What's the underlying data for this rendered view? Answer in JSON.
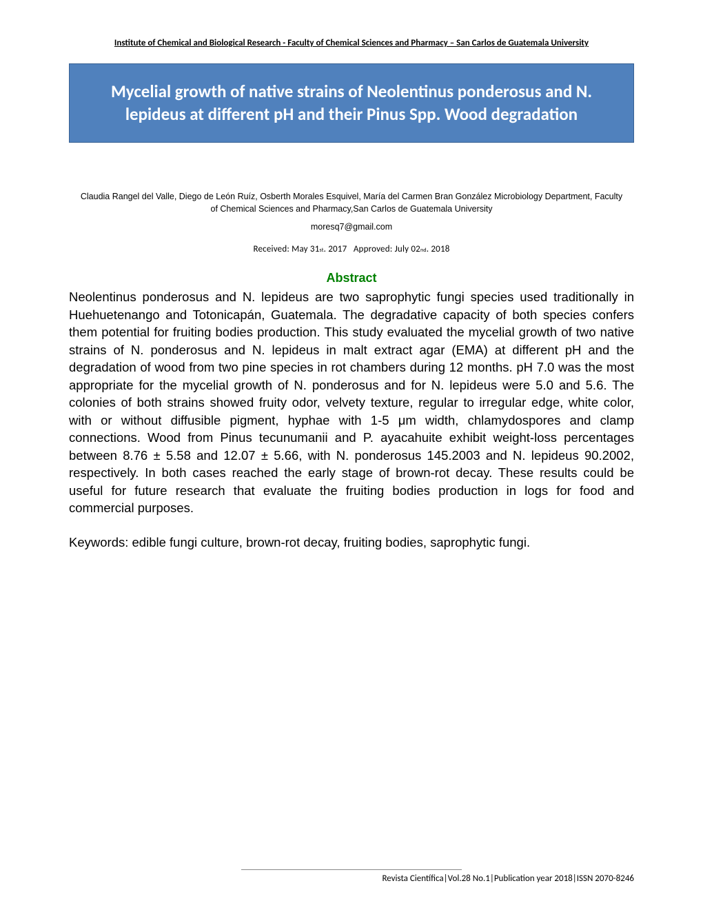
{
  "header": "Institute of Chemical and Biological Research - Faculty of Chemical Sciences and Pharmacy – San Carlos de Guatemala University",
  "title": "Mycelial growth of native strains of Neolentinus ponderosus and N. lepideus at different pH and their Pinus Spp. Wood degradation",
  "authors": "Claudia Rangel del Valle, Diego de León Ruíz, Osberth Morales Esquivel, María del Carmen Bran González Microbiology Department,  Faculty of Chemical Sciences and Pharmacy,San Carlos de Guatemala University",
  "email": "moresq7@gmail.com",
  "received_label": "Received: May 31",
  "received_suffix": "st",
  "received_year": ". 2017",
  "approved_label": "Approved: July 02",
  "approved_suffix": "nd",
  "approved_year": ". 2018",
  "abstract_header": "Abstract",
  "abstract_text": "Neolentinus ponderosus and N. lepideus are two saprophytic fungi species used traditionally in Huehuetenango and Totonicapán, Guatemala. The degradative capacity of both species confers them potential for fruiting bodies production. This study evaluated the mycelial growth of two native strains of N. ponderosus and N. lepideus in malt extract agar (EMA) at different pH and the degradation of wood from two pine species in rot chambers during 12 months. pH 7.0 was the most appropriate for the mycelial growth of N. ponderosus and for N. lepideus were 5.0 and 5.6. The colonies of both strains showed fruity odor, velvety texture, regular to irregular edge, white color, with or without diffusible pigment, hyphae with 1-5 μm width, chlamydospores and clamp connections. Wood from Pinus tecunumanii and P. ayacahuite exhibit weight-loss percentages between 8.76 ± 5.58 and 12.07 ± 5.66, with N. ponderosus 145.2003 and N. lepideus 90.2002, respectively. In both cases reached the early stage of brown-rot decay. These results could be useful for future research that evaluate the fruiting bodies production in logs for food and commercial purposes.",
  "keywords": "Keywords: edible fungi culture, brown-rot decay, fruiting bodies, saprophytic fungi.",
  "footer": "Revista Científica|Vol.28 No.1|Publication year 2018|ISSN 2070-8246",
  "colors": {
    "title_bg": "#5081bd",
    "title_border": "#376092",
    "title_text": "#ffffff",
    "abstract_header": "#008000",
    "body_text": "#000000",
    "page_bg": "#ffffff"
  }
}
